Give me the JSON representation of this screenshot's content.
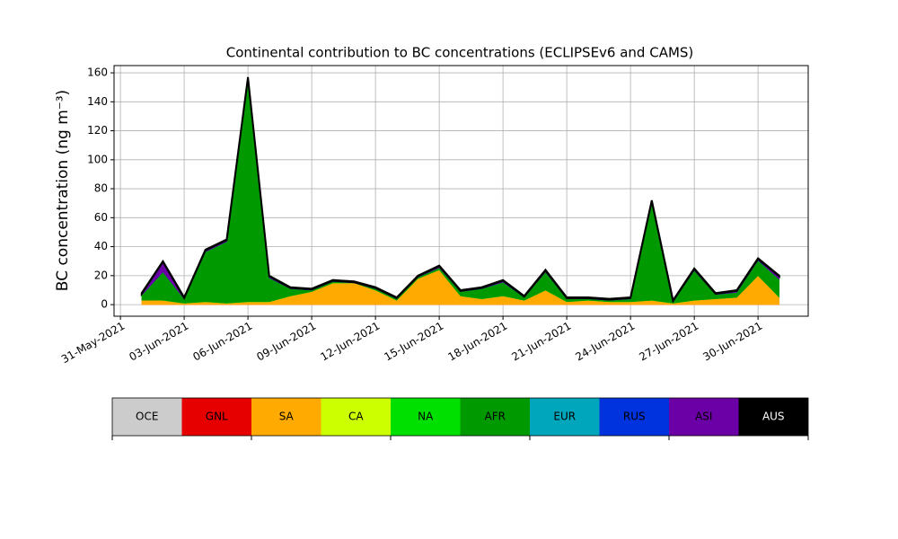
{
  "chart_data": {
    "type": "stacked_area",
    "title": "Continental contribution to BC concentrations (ECLIPSEv6 and CAMS)",
    "y_label": "BC concentration (ng m⁻³)",
    "x": [
      "2021-06-01",
      "2021-06-02",
      "2021-06-03",
      "2021-06-04",
      "2021-06-05",
      "2021-06-06",
      "2021-06-07",
      "2021-06-08",
      "2021-06-09",
      "2021-06-10",
      "2021-06-11",
      "2021-06-12",
      "2021-06-13",
      "2021-06-14",
      "2021-06-15",
      "2021-06-16",
      "2021-06-17",
      "2021-06-18",
      "2021-06-19",
      "2021-06-20",
      "2021-06-21",
      "2021-06-22",
      "2021-06-23",
      "2021-06-24",
      "2021-06-25",
      "2021-06-26",
      "2021-06-27",
      "2021-06-28",
      "2021-06-29",
      "2021-06-30",
      "2021-07-01"
    ],
    "series": [
      {
        "name": "OCE",
        "color": "#cccccc",
        "values": [
          0,
          0,
          0,
          0,
          0,
          0,
          0,
          0,
          0,
          0,
          0,
          0,
          0,
          0,
          0,
          0,
          0,
          0,
          0,
          0,
          0,
          0,
          0,
          0,
          0,
          0,
          0,
          0,
          0,
          0,
          0
        ]
      },
      {
        "name": "GNL",
        "color": "#e60000",
        "values": [
          0,
          0,
          0,
          0,
          0,
          0,
          0,
          0,
          0,
          0,
          0,
          0,
          0,
          0,
          0,
          0,
          0,
          0,
          0,
          0,
          0,
          0,
          0,
          0,
          0,
          0,
          0,
          0,
          0,
          0,
          0
        ]
      },
      {
        "name": "SA",
        "color": "#ffaa00",
        "values": [
          3,
          3,
          1,
          2,
          1,
          2,
          2,
          6,
          9,
          15,
          15,
          10,
          3,
          18,
          24,
          6,
          4,
          6,
          3,
          10,
          2,
          3,
          2,
          2,
          3,
          1,
          3,
          4,
          5,
          20,
          5
        ]
      },
      {
        "name": "CA",
        "color": "#ccff00",
        "values": [
          0,
          0,
          0,
          0,
          0,
          0,
          0,
          0,
          0,
          0,
          0,
          0,
          0,
          0,
          0,
          0,
          0,
          0,
          0,
          0,
          0,
          0,
          0,
          0,
          0,
          0,
          0,
          0,
          0,
          0,
          0
        ]
      },
      {
        "name": "NA",
        "color": "#00e000",
        "values": [
          0,
          0,
          0,
          0,
          0,
          0,
          0,
          0,
          0,
          0,
          0,
          0,
          0,
          0,
          0,
          0,
          0,
          0,
          0,
          0,
          0,
          0,
          0,
          0,
          0,
          0,
          0,
          0,
          0,
          0,
          0
        ]
      },
      {
        "name": "AFR",
        "color": "#009a00",
        "values": [
          3.5,
          19.5,
          3,
          34.5,
          42.5,
          152.5,
          16.5,
          5,
          1,
          1,
          0,
          1,
          1,
          1,
          1.5,
          3,
          7,
          9.5,
          2,
          12.5,
          2,
          1,
          1,
          2,
          67.5,
          1,
          20.5,
          3,
          3.5,
          10.5,
          12.5
        ]
      },
      {
        "name": "EUR",
        "color": "#00a6bb",
        "values": [
          0,
          0,
          0,
          0,
          0,
          0,
          0,
          0,
          0,
          0,
          0,
          0,
          0,
          0,
          0,
          0,
          0,
          0,
          0,
          0,
          0,
          0,
          0,
          0,
          0,
          0,
          0,
          0,
          0,
          0,
          0
        ]
      },
      {
        "name": "RUS",
        "color": "#0033dd",
        "values": [
          0,
          0,
          0,
          0,
          0,
          0,
          0,
          0,
          0,
          0,
          0,
          0,
          0,
          0,
          0,
          0,
          0,
          0,
          0,
          0,
          0,
          0,
          0,
          0,
          0,
          0,
          0,
          0,
          0,
          0,
          0
        ]
      },
      {
        "name": "ASI",
        "color": "#6a00a6",
        "values": [
          1,
          7,
          0.5,
          1,
          1,
          2,
          1,
          0.5,
          0.5,
          0.5,
          0.5,
          0.5,
          0.5,
          0.5,
          1,
          0.5,
          0.5,
          1,
          0.5,
          1,
          0.5,
          0.5,
          0.5,
          0.5,
          1,
          0.5,
          1,
          0.5,
          1,
          1,
          2
        ]
      },
      {
        "name": "AUS",
        "color": "#000000",
        "values": [
          0.5,
          0.5,
          0.5,
          0.5,
          0.5,
          0.5,
          0.5,
          0.5,
          0.5,
          0.5,
          0.5,
          0.5,
          0.5,
          0.5,
          0.5,
          0.5,
          0.5,
          0.5,
          0.5,
          0.5,
          0.5,
          0.5,
          0.5,
          0.5,
          0.5,
          0.5,
          0.5,
          0.5,
          0.5,
          0.5,
          0.5
        ]
      }
    ],
    "xlim": [
      "2021-05-31",
      "2021-07-02"
    ],
    "xticks": [
      {
        "value": "2021-05-31",
        "label": "31-May-2021"
      },
      {
        "value": "2021-06-03",
        "label": "03-Jun-2021"
      },
      {
        "value": "2021-06-06",
        "label": "06-Jun-2021"
      },
      {
        "value": "2021-06-09",
        "label": "09-Jun-2021"
      },
      {
        "value": "2021-06-12",
        "label": "12-Jun-2021"
      },
      {
        "value": "2021-06-15",
        "label": "15-Jun-2021"
      },
      {
        "value": "2021-06-18",
        "label": "18-Jun-2021"
      },
      {
        "value": "2021-06-21",
        "label": "21-Jun-2021"
      },
      {
        "value": "2021-06-24",
        "label": "24-Jun-2021"
      },
      {
        "value": "2021-06-27",
        "label": "27-Jun-2021"
      },
      {
        "value": "2021-06-30",
        "label": "30-Jun-2021"
      }
    ],
    "ylim": [
      -8,
      165
    ],
    "yticks": [
      0,
      20,
      40,
      60,
      80,
      100,
      120,
      140,
      160
    ],
    "grid": true
  }
}
